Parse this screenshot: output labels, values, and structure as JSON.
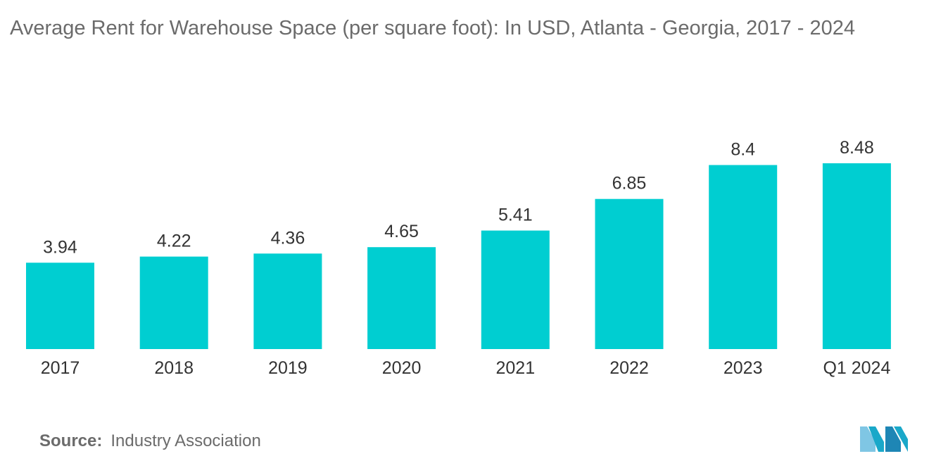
{
  "chart_data": {
    "type": "bar",
    "title": "Average Rent for Warehouse Space (per square foot): In USD, Atlanta - Georgia, 2017 - 2024",
    "categories": [
      "2017",
      "2018",
      "2019",
      "2020",
      "2021",
      "2022",
      "2023",
      "Q1 2024"
    ],
    "values": [
      3.94,
      4.22,
      4.36,
      4.65,
      5.41,
      6.85,
      8.4,
      8.48
    ],
    "value_labels": [
      "3.94",
      "4.22",
      "4.36",
      "4.65",
      "5.41",
      "6.85",
      "8.4",
      "8.48"
    ],
    "xlabel": "",
    "ylabel": "",
    "ylim": [
      0,
      10
    ],
    "grid": false,
    "bar_color": "#00CED1"
  },
  "source": {
    "label": "Source:",
    "text": "Industry Association"
  },
  "brand": {
    "logo_colors": [
      "#7fc6e4",
      "#1aa8c9",
      "#1e86b5"
    ]
  }
}
